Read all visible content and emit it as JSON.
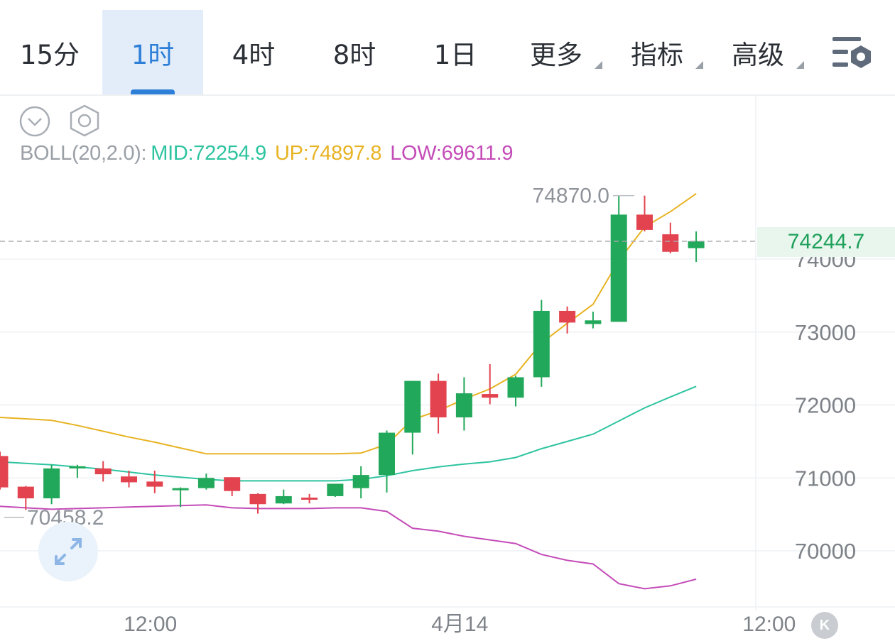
{
  "tabs": [
    {
      "label": "15分",
      "active": false,
      "dropdown": false
    },
    {
      "label": "1时",
      "active": true,
      "dropdown": false
    },
    {
      "label": "4时",
      "active": false,
      "dropdown": false
    },
    {
      "label": "8时",
      "active": false,
      "dropdown": false
    },
    {
      "label": "1日",
      "active": false,
      "dropdown": false
    },
    {
      "label": "更多",
      "active": false,
      "dropdown": true
    },
    {
      "label": "指标",
      "active": false,
      "dropdown": true
    },
    {
      "label": "高级",
      "active": false,
      "dropdown": true
    }
  ],
  "toolbar_icons": [
    "chevron-down-icon",
    "hexagon-settings-icon"
  ],
  "settings_icon": "chart-settings-icon",
  "indicator": {
    "name": "BOLL(20,2.0):",
    "mid": "MID:72254.9",
    "up": "UP:74897.8",
    "low": "LOW:69611.9"
  },
  "current_price_tag": "74244.7",
  "high_marker": "74870.0",
  "low_marker": "70458.2",
  "k_button": "K",
  "colors": {
    "accent": "#2e7fd8",
    "up_candle": "#22a85a",
    "down_candle": "#e2434f",
    "mid_line": "#2ec4a0",
    "upper_line": "#e8b323",
    "lower_line": "#c44cb8",
    "price_label_bg": "#e8f6ee"
  },
  "chart_data": {
    "type": "candlestick",
    "y_axis": {
      "ticks": [
        "74000",
        "73000",
        "72000",
        "71000",
        "70000"
      ],
      "range": [
        69300,
        75750
      ]
    },
    "x_axis": {
      "ticks": [
        {
          "label": "12:00",
          "index": 5.5
        },
        {
          "label": "4月14",
          "index": 17.5
        },
        {
          "label": "12:00",
          "index": 29.5
        }
      ]
    },
    "current_price": 74244.7,
    "candles": [
      {
        "o": 71300,
        "h": 71360,
        "l": 70840,
        "c": 70870
      },
      {
        "o": 70880,
        "h": 70890,
        "l": 70560,
        "c": 70720
      },
      {
        "o": 70720,
        "h": 71180,
        "l": 70640,
        "c": 71130
      },
      {
        "o": 71130,
        "h": 71180,
        "l": 71000,
        "c": 71160
      },
      {
        "o": 71130,
        "h": 71230,
        "l": 70950,
        "c": 71050
      },
      {
        "o": 71020,
        "h": 71100,
        "l": 70870,
        "c": 70940
      },
      {
        "o": 70950,
        "h": 71100,
        "l": 70790,
        "c": 70880
      },
      {
        "o": 70860,
        "h": 70870,
        "l": 70600,
        "c": 70860
      },
      {
        "o": 70860,
        "h": 71060,
        "l": 70840,
        "c": 71000
      },
      {
        "o": 71010,
        "h": 71010,
        "l": 70750,
        "c": 70820
      },
      {
        "o": 70780,
        "h": 70790,
        "l": 70510,
        "c": 70640
      },
      {
        "o": 70650,
        "h": 70840,
        "l": 70640,
        "c": 70750
      },
      {
        "o": 70730,
        "h": 70780,
        "l": 70650,
        "c": 70710
      },
      {
        "o": 70750,
        "h": 70900,
        "l": 70740,
        "c": 70920
      },
      {
        "o": 70860,
        "h": 71160,
        "l": 70720,
        "c": 71040
      },
      {
        "o": 71040,
        "h": 71650,
        "l": 70800,
        "c": 71620
      },
      {
        "o": 71620,
        "h": 72330,
        "l": 71320,
        "c": 72330
      },
      {
        "o": 72330,
        "h": 72430,
        "l": 71610,
        "c": 71830
      },
      {
        "o": 71830,
        "h": 72380,
        "l": 71650,
        "c": 72160
      },
      {
        "o": 72150,
        "h": 72560,
        "l": 72010,
        "c": 72100
      },
      {
        "o": 72100,
        "h": 72400,
        "l": 71980,
        "c": 72380
      },
      {
        "o": 72380,
        "h": 73440,
        "l": 72250,
        "c": 73290
      },
      {
        "o": 73290,
        "h": 73350,
        "l": 72980,
        "c": 73130
      },
      {
        "o": 73110,
        "h": 73280,
        "l": 73050,
        "c": 73160
      },
      {
        "o": 73140,
        "h": 74870,
        "l": 73140,
        "c": 74610
      },
      {
        "o": 74610,
        "h": 74870,
        "l": 74380,
        "c": 74400
      },
      {
        "o": 74340,
        "h": 74500,
        "l": 74080,
        "c": 74100
      },
      {
        "o": 74150,
        "h": 74380,
        "l": 73960,
        "c": 74245
      }
    ],
    "boll": {
      "mid": [
        71220,
        71200,
        71180,
        71150,
        71120,
        71080,
        71040,
        71010,
        70980,
        70960,
        70960,
        70960,
        70960,
        70960,
        70980,
        71030,
        71100,
        71150,
        71190,
        71220,
        71280,
        71400,
        71500,
        71600,
        71780,
        71960,
        72110,
        72254.9
      ],
      "upper": [
        71830,
        71810,
        71790,
        71720,
        71640,
        71560,
        71490,
        71410,
        71330,
        71330,
        71330,
        71330,
        71330,
        71330,
        71340,
        71460,
        71800,
        71920,
        72080,
        72220,
        72420,
        72850,
        73120,
        73380,
        73980,
        74440,
        74650,
        74897.8
      ],
      "lower": [
        70610,
        70590,
        70570,
        70580,
        70590,
        70600,
        70610,
        70620,
        70630,
        70590,
        70580,
        70580,
        70580,
        70590,
        70590,
        70540,
        70310,
        70270,
        70200,
        70150,
        70100,
        69950,
        69870,
        69820,
        69550,
        69480,
        69520,
        69611.9
      ]
    }
  }
}
